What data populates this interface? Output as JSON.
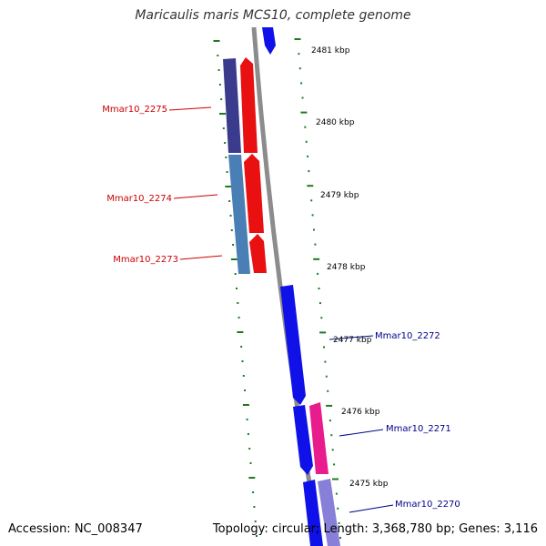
{
  "title": "Maricaulis maris MCS10, complete genome",
  "footer": {
    "accession": "Accession: NC_008347",
    "topology": "Topology: circular; Length: 3,368,780 bp; Genes: 3,116"
  },
  "colors": {
    "backbone": "#8c8c8c",
    "tick": "#1f7a1f",
    "forward_label": "#cc0000",
    "reverse_label": "#00008b"
  },
  "scale": {
    "unit": "kbp",
    "ticks": [
      2481,
      2480,
      2479,
      2478,
      2477,
      2476,
      2475
    ]
  },
  "genes": [
    {
      "name": "Mmar10_2275",
      "strand": "forward",
      "color": "#cc0000"
    },
    {
      "name": "Mmar10_2274",
      "strand": "forward",
      "color": "#cc0000"
    },
    {
      "name": "Mmar10_2273",
      "strand": "forward",
      "color": "#cc0000"
    },
    {
      "name": "Mmar10_2272",
      "strand": "reverse",
      "color": "#00008b"
    },
    {
      "name": "Mmar10_2271",
      "strand": "reverse",
      "color": "#00008b"
    },
    {
      "name": "Mmar10_2270",
      "strand": "reverse",
      "color": "#00008b"
    }
  ]
}
